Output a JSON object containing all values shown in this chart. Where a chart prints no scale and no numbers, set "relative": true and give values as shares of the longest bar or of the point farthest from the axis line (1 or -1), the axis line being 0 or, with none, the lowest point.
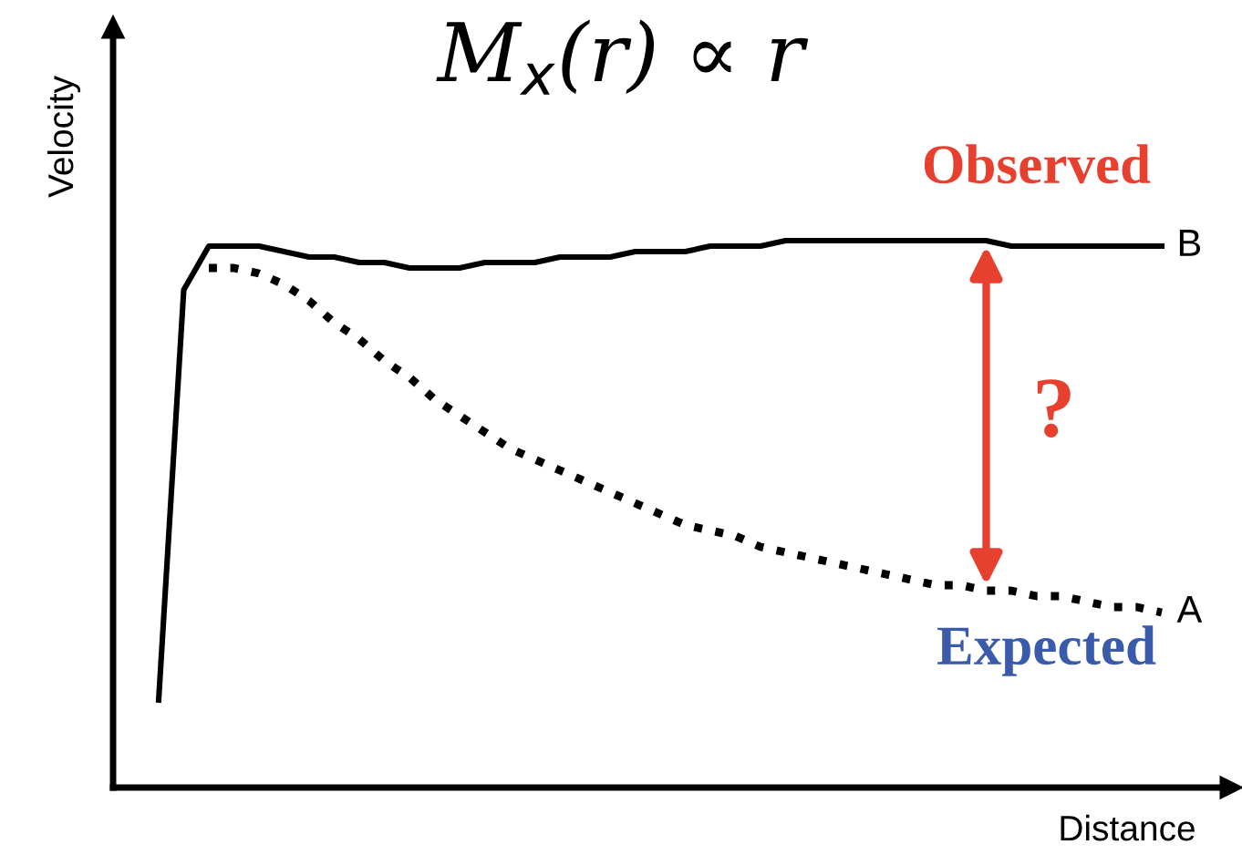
{
  "chart_data": {
    "type": "line",
    "title": "M$_{x}$(r) ∝ r",
    "xlabel": "Distance",
    "ylabel": "Velocity",
    "relative": true,
    "legend": false,
    "grid": false,
    "marker": "none",
    "categories": [
      null,
      null,
      null,
      null,
      null,
      null,
      null,
      null,
      null,
      null,
      null,
      null,
      null,
      null,
      null,
      null,
      null,
      null,
      null,
      null,
      null,
      null,
      null,
      null,
      null,
      null,
      null,
      null,
      null,
      null,
      null,
      null,
      null,
      null,
      null,
      null,
      null,
      null,
      null,
      null,
      null
    ],
    "series": [
      {
        "name": "B",
        "color": "#000000",
        "line_style": "solid",
        "values": [
          0.16,
          0.91,
          0.99,
          0.99,
          0.99,
          0.98,
          0.97,
          0.97,
          0.96,
          0.96,
          0.95,
          0.95,
          0.95,
          0.96,
          0.96,
          0.96,
          0.97,
          0.97,
          0.97,
          0.98,
          0.98,
          0.98,
          0.99,
          0.99,
          0.99,
          1.0,
          1.0,
          1.0,
          1.0,
          1.0,
          1.0,
          1.0,
          1.0,
          1.0,
          0.99,
          0.99,
          0.99,
          0.99,
          0.99,
          0.99,
          0.99
        ]
      },
      {
        "name": "A",
        "color": "#000000",
        "line_style": "dotted",
        "values": [
          null,
          null,
          0.95,
          0.95,
          0.94,
          0.92,
          0.89,
          0.85,
          0.82,
          0.78,
          0.75,
          0.71,
          0.68,
          0.65,
          0.62,
          0.6,
          0.58,
          0.56,
          0.54,
          0.52,
          0.5,
          0.48,
          0.47,
          0.46,
          0.44,
          0.43,
          0.42,
          0.41,
          0.4,
          0.39,
          0.38,
          0.37,
          0.37,
          0.36,
          0.36,
          0.35,
          0.35,
          0.34,
          0.33,
          0.33,
          0.32
        ]
      }
    ],
    "annotations": [
      "Observed",
      "?",
      "Expected"
    ]
  }
}
